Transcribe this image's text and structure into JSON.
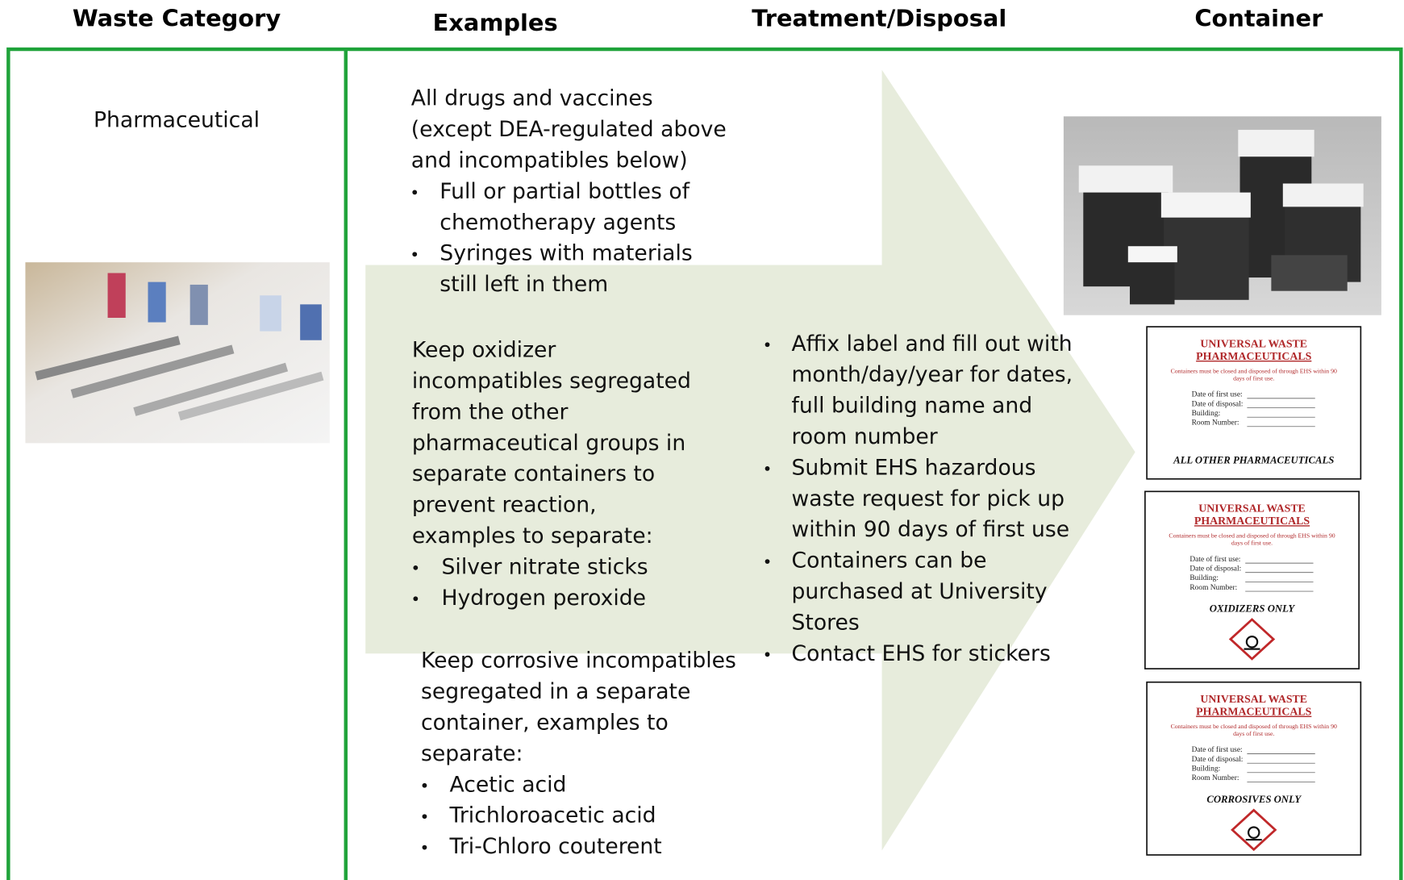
{
  "headers": [
    "Waste Category",
    "Examples",
    "Treatment/Disposal",
    "Container"
  ],
  "category": "Pharmaceutical",
  "examples": [
    {
      "intro": [
        "All drugs and vaccines",
        "(except DEA-regulated above",
        "and incompatibles below)"
      ],
      "bullets": [
        [
          "Full or partial bottles of",
          "chemotherapy agents"
        ],
        [
          "Syringes with materials",
          "still left in them"
        ]
      ]
    },
    {
      "intro": [
        "Keep oxidizer",
        "incompatibles segregated",
        "from the other",
        "pharmaceutical groups in",
        "separate containers to",
        "prevent reaction,",
        "examples to separate:"
      ],
      "bullets": [
        [
          "Silver nitrate sticks"
        ],
        [
          "Hydrogen peroxide"
        ]
      ]
    },
    {
      "intro": [
        "Keep corrosive incompatibles",
        "segregated in a separate",
        "container, examples to",
        "separate:"
      ],
      "bullets": [
        [
          "Acetic acid"
        ],
        [
          "Trichloroacetic acid"
        ],
        [
          "Tri-Chloro couterent"
        ]
      ]
    }
  ],
  "treatment": [
    [
      "Affix label and fill out with",
      "month/day/year for dates,",
      "full building name and",
      "room number"
    ],
    [
      "Submit EHS hazardous",
      "waste request for pick up",
      "within 90 days of first use"
    ],
    [
      "Containers can be",
      "purchased at University",
      "Stores"
    ],
    [
      "Contact EHS for stickers"
    ]
  ],
  "labels": [
    {
      "title": [
        "UNIVERSAL WASTE",
        "PHARMACEUTICALS"
      ],
      "note": [
        "Containers must be closed and disposed of through EHS within 90",
        "days of first use."
      ],
      "fields": [
        "Date of first use:",
        "Date of disposal:",
        "Building:",
        "Room Number:"
      ],
      "footer": "ALL OTHER PHARMACEUTICALS"
    },
    {
      "title": [
        "UNIVERSAL WASTE",
        "PHARMACEUTICALS"
      ],
      "note": [
        "Containers must be closed and disposed of through EHS within 90",
        "days of first use."
      ],
      "fields": [
        "Date of first use:",
        "Date of disposal:",
        "Building:",
        "Room Number:"
      ],
      "footer": "OXIDIZERS ONLY"
    },
    {
      "title": [
        "UNIVERSAL WASTE",
        "PHARMACEUTICALS"
      ],
      "note": [
        "Containers must be closed and disposed of through EHS within 90",
        "days of first use."
      ],
      "fields": [
        "Date of first use:",
        "Date of disposal:",
        "Building:",
        "Room Number:"
      ],
      "footer": "CORROSIVES ONLY"
    }
  ]
}
